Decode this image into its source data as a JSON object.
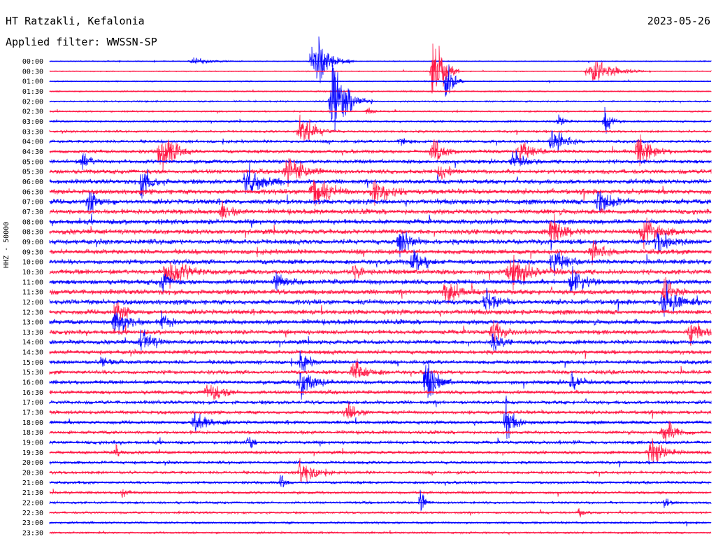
{
  "header": {
    "station": "HT Ratzakli, Kefalonia",
    "date": "2023-05-26",
    "filter": "Applied filter: WWSSN-SP"
  },
  "chart_data": {
    "type": "line",
    "subtype": "helicorder",
    "ylabel": "HHZ - 50000",
    "trace_colors": [
      "#0000ff",
      "#ff1744"
    ],
    "row_labels": [
      "00:00",
      "00:30",
      "01:00",
      "01:30",
      "02:00",
      "02:30",
      "03:00",
      "03:30",
      "04:00",
      "04:30",
      "05:00",
      "05:30",
      "06:00",
      "06:30",
      "07:00",
      "07:30",
      "08:00",
      "08:30",
      "09:00",
      "09:30",
      "10:00",
      "10:30",
      "11:00",
      "11:30",
      "12:00",
      "12:30",
      "13:00",
      "13:30",
      "14:00",
      "14:30",
      "15:00",
      "15:30",
      "16:00",
      "16:30",
      "17:00",
      "17:30",
      "18:00",
      "18:30",
      "19:00",
      "19:30",
      "20:00",
      "20:30",
      "21:00",
      "21:30",
      "22:00",
      "22:30",
      "23:00",
      "23:30"
    ],
    "noise_level": [
      0.5,
      0.5,
      0.6,
      0.7,
      0.8,
      0.8,
      1.0,
      1.2,
      1.6,
      2.0,
      2.2,
      2.5,
      2.6,
      2.8,
      2.8,
      2.8,
      2.8,
      2.8,
      2.8,
      2.7,
      2.7,
      2.8,
      2.8,
      2.8,
      2.8,
      2.7,
      2.6,
      2.5,
      2.4,
      2.3,
      2.2,
      2.2,
      2.2,
      2.1,
      2.0,
      2.0,
      1.9,
      1.8,
      1.8,
      1.7,
      1.6,
      1.6,
      1.5,
      1.4,
      1.3,
      1.2,
      1.1,
      1.0
    ],
    "events": [
      {
        "row": 0,
        "pos": 0.4,
        "amp": 36,
        "dur": 0.06
      },
      {
        "row": 0,
        "pos": 0.22,
        "amp": 4,
        "dur": 0.08
      },
      {
        "row": 1,
        "pos": 0.58,
        "amp": 55,
        "dur": 0.04
      },
      {
        "row": 1,
        "pos": 0.82,
        "amp": 14,
        "dur": 0.09
      },
      {
        "row": 2,
        "pos": 0.6,
        "amp": 30,
        "dur": 0.03
      },
      {
        "row": 4,
        "pos": 0.43,
        "amp": 45,
        "dur": 0.06
      },
      {
        "row": 5,
        "pos": 0.48,
        "amp": 7,
        "dur": 0.02
      },
      {
        "row": 6,
        "pos": 0.84,
        "amp": 15,
        "dur": 0.03
      },
      {
        "row": 6,
        "pos": 0.77,
        "amp": 8,
        "dur": 0.03
      },
      {
        "row": 7,
        "pos": 0.38,
        "amp": 20,
        "dur": 0.06
      },
      {
        "row": 8,
        "pos": 0.76,
        "amp": 18,
        "dur": 0.05
      },
      {
        "row": 8,
        "pos": 0.53,
        "amp": 6,
        "dur": 0.03
      },
      {
        "row": 9,
        "pos": 0.17,
        "amp": 25,
        "dur": 0.06
      },
      {
        "row": 9,
        "pos": 0.58,
        "amp": 18,
        "dur": 0.04
      },
      {
        "row": 9,
        "pos": 0.89,
        "amp": 20,
        "dur": 0.05
      },
      {
        "row": 9,
        "pos": 0.71,
        "amp": 16,
        "dur": 0.04
      },
      {
        "row": 10,
        "pos": 0.7,
        "amp": 14,
        "dur": 0.04
      },
      {
        "row": 10,
        "pos": 0.05,
        "amp": 12,
        "dur": 0.03
      },
      {
        "row": 11,
        "pos": 0.36,
        "amp": 18,
        "dur": 0.06
      },
      {
        "row": 11,
        "pos": 0.59,
        "amp": 14,
        "dur": 0.03
      },
      {
        "row": 12,
        "pos": 0.14,
        "amp": 20,
        "dur": 0.04
      },
      {
        "row": 12,
        "pos": 0.3,
        "amp": 20,
        "dur": 0.06
      },
      {
        "row": 13,
        "pos": 0.4,
        "amp": 20,
        "dur": 0.06
      },
      {
        "row": 13,
        "pos": 0.49,
        "amp": 22,
        "dur": 0.05
      },
      {
        "row": 14,
        "pos": 0.83,
        "amp": 22,
        "dur": 0.05
      },
      {
        "row": 14,
        "pos": 0.06,
        "amp": 14,
        "dur": 0.04
      },
      {
        "row": 15,
        "pos": 0.26,
        "amp": 14,
        "dur": 0.03
      },
      {
        "row": 17,
        "pos": 0.76,
        "amp": 20,
        "dur": 0.05
      },
      {
        "row": 17,
        "pos": 0.9,
        "amp": 20,
        "dur": 0.06
      },
      {
        "row": 18,
        "pos": 0.53,
        "amp": 18,
        "dur": 0.04
      },
      {
        "row": 18,
        "pos": 0.92,
        "amp": 14,
        "dur": 0.05
      },
      {
        "row": 19,
        "pos": 0.82,
        "amp": 12,
        "dur": 0.05
      },
      {
        "row": 20,
        "pos": 0.55,
        "amp": 14,
        "dur": 0.05
      },
      {
        "row": 20,
        "pos": 0.76,
        "amp": 20,
        "dur": 0.04
      },
      {
        "row": 21,
        "pos": 0.18,
        "amp": 18,
        "dur": 0.08
      },
      {
        "row": 21,
        "pos": 0.7,
        "amp": 18,
        "dur": 0.08
      },
      {
        "row": 21,
        "pos": 0.46,
        "amp": 10,
        "dur": 0.03
      },
      {
        "row": 22,
        "pos": 0.17,
        "amp": 16,
        "dur": 0.03
      },
      {
        "row": 22,
        "pos": 0.34,
        "amp": 16,
        "dur": 0.03
      },
      {
        "row": 22,
        "pos": 0.79,
        "amp": 18,
        "dur": 0.05
      },
      {
        "row": 23,
        "pos": 0.6,
        "amp": 16,
        "dur": 0.05
      },
      {
        "row": 23,
        "pos": 0.93,
        "amp": 16,
        "dur": 0.03
      },
      {
        "row": 24,
        "pos": 0.66,
        "amp": 14,
        "dur": 0.04
      },
      {
        "row": 24,
        "pos": 0.93,
        "amp": 18,
        "dur": 0.06
      },
      {
        "row": 25,
        "pos": 0.1,
        "amp": 14,
        "dur": 0.04
      },
      {
        "row": 26,
        "pos": 0.1,
        "amp": 20,
        "dur": 0.05
      },
      {
        "row": 26,
        "pos": 0.17,
        "amp": 12,
        "dur": 0.03
      },
      {
        "row": 27,
        "pos": 0.67,
        "amp": 16,
        "dur": 0.04
      },
      {
        "row": 27,
        "pos": 0.97,
        "amp": 20,
        "dur": 0.04
      },
      {
        "row": 28,
        "pos": 0.14,
        "amp": 18,
        "dur": 0.04
      },
      {
        "row": 28,
        "pos": 0.67,
        "amp": 12,
        "dur": 0.03
      },
      {
        "row": 30,
        "pos": 0.08,
        "amp": 10,
        "dur": 0.03
      },
      {
        "row": 30,
        "pos": 0.38,
        "amp": 14,
        "dur": 0.03
      },
      {
        "row": 31,
        "pos": 0.46,
        "amp": 18,
        "dur": 0.05
      },
      {
        "row": 32,
        "pos": 0.38,
        "amp": 22,
        "dur": 0.05
      },
      {
        "row": 32,
        "pos": 0.57,
        "amp": 28,
        "dur": 0.04
      },
      {
        "row": 32,
        "pos": 0.79,
        "amp": 18,
        "dur": 0.03
      },
      {
        "row": 33,
        "pos": 0.24,
        "amp": 16,
        "dur": 0.05
      },
      {
        "row": 35,
        "pos": 0.45,
        "amp": 10,
        "dur": 0.04
      },
      {
        "row": 36,
        "pos": 0.22,
        "amp": 16,
        "dur": 0.05
      },
      {
        "row": 36,
        "pos": 0.69,
        "amp": 22,
        "dur": 0.03
      },
      {
        "row": 37,
        "pos": 0.93,
        "amp": 14,
        "dur": 0.05
      },
      {
        "row": 38,
        "pos": 0.3,
        "amp": 12,
        "dur": 0.02
      },
      {
        "row": 39,
        "pos": 0.1,
        "amp": 10,
        "dur": 0.02
      },
      {
        "row": 39,
        "pos": 0.91,
        "amp": 16,
        "dur": 0.06
      },
      {
        "row": 41,
        "pos": 0.38,
        "amp": 18,
        "dur": 0.05
      },
      {
        "row": 42,
        "pos": 0.35,
        "amp": 12,
        "dur": 0.02
      },
      {
        "row": 43,
        "pos": 0.11,
        "amp": 8,
        "dur": 0.02
      },
      {
        "row": 44,
        "pos": 0.56,
        "amp": 16,
        "dur": 0.02
      },
      {
        "row": 44,
        "pos": 0.93,
        "amp": 8,
        "dur": 0.02
      },
      {
        "row": 45,
        "pos": 0.8,
        "amp": 6,
        "dur": 0.02
      }
    ]
  }
}
